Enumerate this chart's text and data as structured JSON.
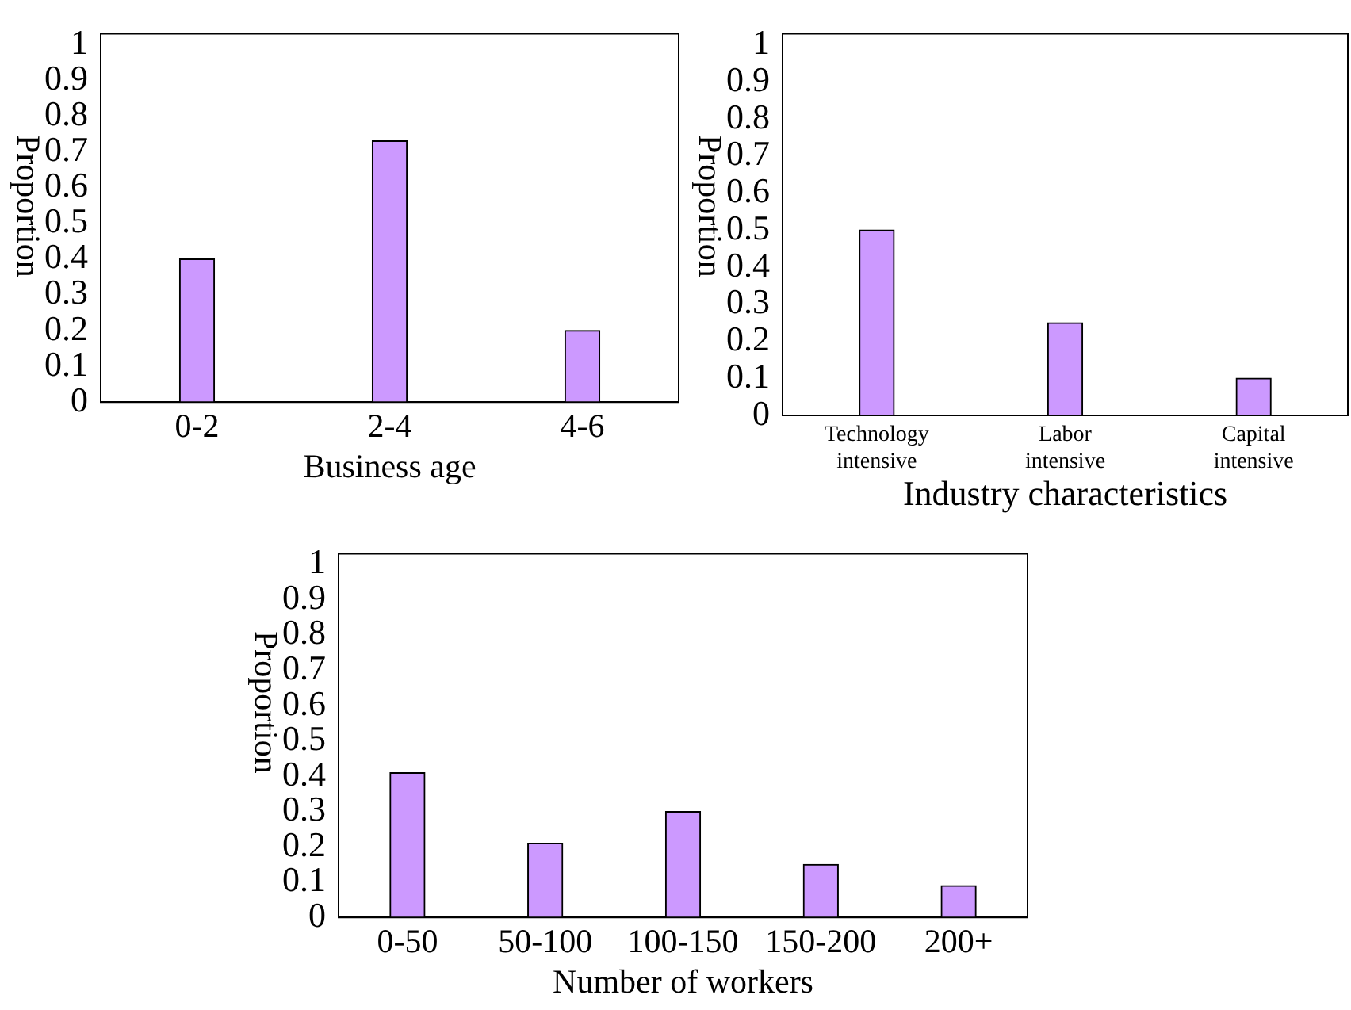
{
  "chart_data": [
    {
      "type": "bar",
      "xlabel": "Business age",
      "ylabel": "Proportion",
      "categories": [
        "0-2",
        "2-4",
        "4-6"
      ],
      "values": [
        0.4,
        0.73,
        0.2
      ],
      "color": "#cc99ff",
      "ylim": [
        0,
        1.03
      ],
      "yticks": [
        0,
        0.1,
        0.2,
        0.3,
        0.4,
        0.5,
        0.6,
        0.7,
        0.8,
        0.9,
        1
      ],
      "grid": false,
      "legend": false
    },
    {
      "type": "bar",
      "xlabel": "Industry characteristics",
      "ylabel": "Proportion",
      "categories": [
        "Technology intensive",
        "Labor intensive",
        "Capital intensive"
      ],
      "values": [
        0.5,
        0.25,
        0.1
      ],
      "color": "#cc99ff",
      "ylim": [
        0,
        1.03
      ],
      "yticks": [
        0,
        0.1,
        0.2,
        0.3,
        0.4,
        0.5,
        0.6,
        0.7,
        0.8,
        0.9,
        1
      ],
      "grid": false,
      "legend": false
    },
    {
      "type": "bar",
      "xlabel": "Number of workers",
      "ylabel": "Proportion",
      "categories": [
        "0-50",
        "50-100",
        "100-150",
        "150-200",
        "200+"
      ],
      "values": [
        0.41,
        0.21,
        0.3,
        0.15,
        0.09
      ],
      "color": "#cc99ff",
      "ylim": [
        0,
        1.03
      ],
      "yticks": [
        0,
        0.1,
        0.2,
        0.3,
        0.4,
        0.5,
        0.6,
        0.7,
        0.8,
        0.9,
        1
      ],
      "grid": false,
      "legend": false
    }
  ]
}
